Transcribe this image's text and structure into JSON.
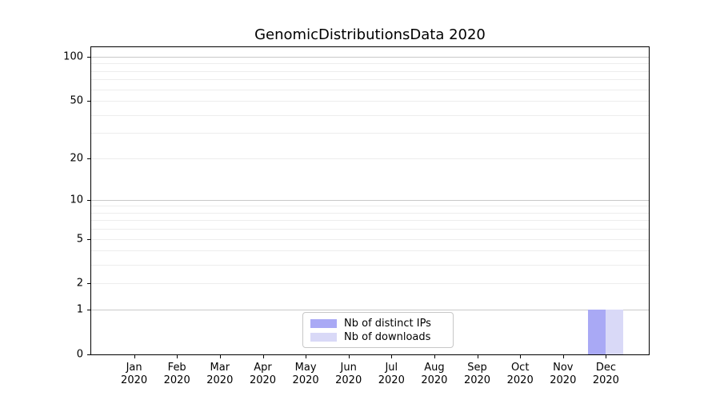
{
  "title": "GenomicDistributionsData 2020",
  "chart_data": {
    "type": "bar",
    "title": "GenomicDistributionsData 2020",
    "categories": [
      "Jan",
      "Feb",
      "Mar",
      "Apr",
      "May",
      "Jun",
      "Jul",
      "Aug",
      "Sep",
      "Oct",
      "Nov",
      "Dec"
    ],
    "category_year": "2020",
    "series": [
      {
        "name": "Nb of distinct IPs",
        "color": "#a9a9f5",
        "values": [
          0,
          0,
          0,
          0,
          0,
          0,
          0,
          0,
          0,
          0,
          0,
          1
        ]
      },
      {
        "name": "Nb of downloads",
        "color": "#d9d9f7",
        "values": [
          0,
          0,
          0,
          0,
          0,
          0,
          0,
          0,
          0,
          0,
          0,
          1
        ]
      }
    ],
    "xlabel": "",
    "ylabel": "",
    "yscale": "log1p",
    "ylim": [
      0,
      116
    ],
    "ytick_labels": [
      0,
      1,
      2,
      5,
      10,
      20,
      50,
      100
    ],
    "gridlines_major": [
      1,
      10,
      100
    ],
    "gridlines_minor": [
      2,
      3,
      4,
      5,
      6,
      7,
      8,
      9,
      20,
      30,
      40,
      50,
      60,
      70,
      80,
      90
    ],
    "grid": true,
    "legend_position": "lower center"
  },
  "colors": {
    "axis": "#000000",
    "grid_major": "#c9c9c9",
    "grid_minor": "#ededed",
    "legend_border": "#c7c7c7",
    "background": "#ffffff",
    "bar_distinct_ips": "#a9a9f5",
    "bar_downloads": "#d9d9f7"
  }
}
